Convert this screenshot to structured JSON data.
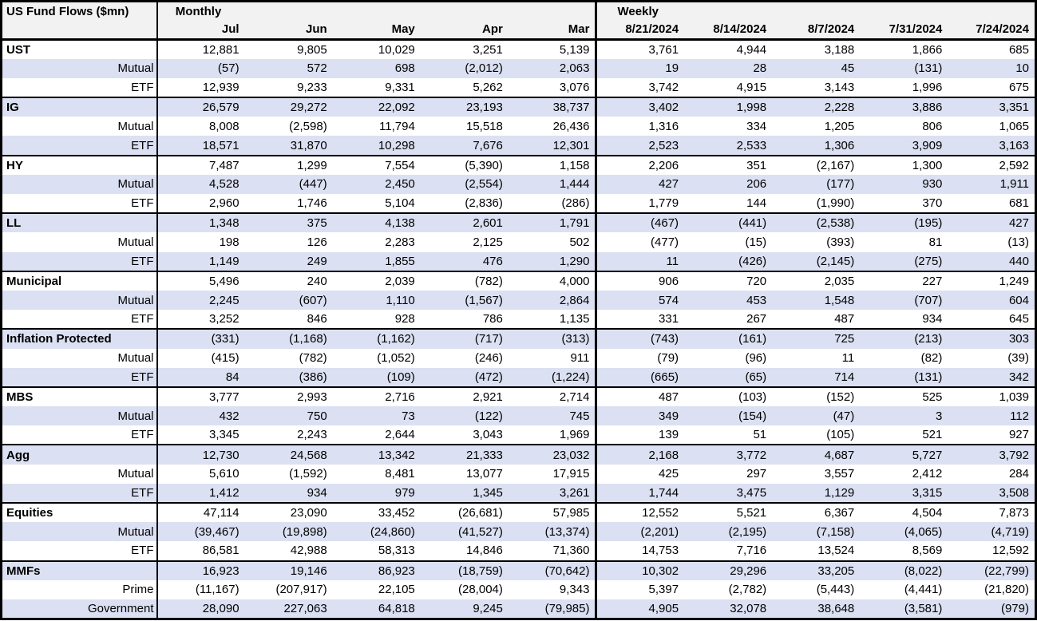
{
  "colors": {
    "stripe": "#dbe0f2",
    "header_bg": "#f2f2f2",
    "border": "#000000"
  },
  "table": {
    "title": "US Fund Flows ($mn)",
    "monthly_label": "Monthly",
    "weekly_label": "Weekly",
    "monthly_columns": [
      "Jul",
      "Jun",
      "May",
      "Apr",
      "Mar"
    ],
    "weekly_columns": [
      "8/21/2024",
      "8/14/2024",
      "8/7/2024",
      "7/31/2024",
      "7/24/2024"
    ],
    "groups": [
      {
        "rows": [
          {
            "label": "UST",
            "monthly": [
              "12,881",
              "9,805",
              "10,029",
              "3,251",
              "5,139"
            ],
            "weekly": [
              "3,761",
              "4,944",
              "3,188",
              "1,866",
              "685"
            ]
          },
          {
            "label": "Mutual",
            "monthly": [
              "(57)",
              "572",
              "698",
              "(2,012)",
              "2,063"
            ],
            "weekly": [
              "19",
              "28",
              "45",
              "(131)",
              "10"
            ]
          },
          {
            "label": "ETF",
            "monthly": [
              "12,939",
              "9,233",
              "9,331",
              "5,262",
              "3,076"
            ],
            "weekly": [
              "3,742",
              "4,915",
              "3,143",
              "1,996",
              "675"
            ]
          }
        ]
      },
      {
        "rows": [
          {
            "label": "IG",
            "monthly": [
              "26,579",
              "29,272",
              "22,092",
              "23,193",
              "38,737"
            ],
            "weekly": [
              "3,402",
              "1,998",
              "2,228",
              "3,886",
              "3,351"
            ]
          },
          {
            "label": "Mutual",
            "monthly": [
              "8,008",
              "(2,598)",
              "11,794",
              "15,518",
              "26,436"
            ],
            "weekly": [
              "1,316",
              "334",
              "1,205",
              "806",
              "1,065"
            ]
          },
          {
            "label": "ETF",
            "monthly": [
              "18,571",
              "31,870",
              "10,298",
              "7,676",
              "12,301"
            ],
            "weekly": [
              "2,523",
              "2,533",
              "1,306",
              "3,909",
              "3,163"
            ]
          }
        ]
      },
      {
        "rows": [
          {
            "label": "HY",
            "monthly": [
              "7,487",
              "1,299",
              "7,554",
              "(5,390)",
              "1,158"
            ],
            "weekly": [
              "2,206",
              "351",
              "(2,167)",
              "1,300",
              "2,592"
            ]
          },
          {
            "label": "Mutual",
            "monthly": [
              "4,528",
              "(447)",
              "2,450",
              "(2,554)",
              "1,444"
            ],
            "weekly": [
              "427",
              "206",
              "(177)",
              "930",
              "1,911"
            ]
          },
          {
            "label": "ETF",
            "monthly": [
              "2,960",
              "1,746",
              "5,104",
              "(2,836)",
              "(286)"
            ],
            "weekly": [
              "1,779",
              "144",
              "(1,990)",
              "370",
              "681"
            ]
          }
        ]
      },
      {
        "rows": [
          {
            "label": "LL",
            "monthly": [
              "1,348",
              "375",
              "4,138",
              "2,601",
              "1,791"
            ],
            "weekly": [
              "(467)",
              "(441)",
              "(2,538)",
              "(195)",
              "427"
            ]
          },
          {
            "label": "Mutual",
            "monthly": [
              "198",
              "126",
              "2,283",
              "2,125",
              "502"
            ],
            "weekly": [
              "(477)",
              "(15)",
              "(393)",
              "81",
              "(13)"
            ]
          },
          {
            "label": "ETF",
            "monthly": [
              "1,149",
              "249",
              "1,855",
              "476",
              "1,290"
            ],
            "weekly": [
              "11",
              "(426)",
              "(2,145)",
              "(275)",
              "440"
            ]
          }
        ]
      },
      {
        "rows": [
          {
            "label": "Municipal",
            "monthly": [
              "5,496",
              "240",
              "2,039",
              "(782)",
              "4,000"
            ],
            "weekly": [
              "906",
              "720",
              "2,035",
              "227",
              "1,249"
            ]
          },
          {
            "label": "Mutual",
            "monthly": [
              "2,245",
              "(607)",
              "1,110",
              "(1,567)",
              "2,864"
            ],
            "weekly": [
              "574",
              "453",
              "1,548",
              "(707)",
              "604"
            ]
          },
          {
            "label": "ETF",
            "monthly": [
              "3,252",
              "846",
              "928",
              "786",
              "1,135"
            ],
            "weekly": [
              "331",
              "267",
              "487",
              "934",
              "645"
            ]
          }
        ]
      },
      {
        "rows": [
          {
            "label": "Inflation Protected",
            "monthly": [
              "(331)",
              "(1,168)",
              "(1,162)",
              "(717)",
              "(313)"
            ],
            "weekly": [
              "(743)",
              "(161)",
              "725",
              "(213)",
              "303"
            ]
          },
          {
            "label": "Mutual",
            "monthly": [
              "(415)",
              "(782)",
              "(1,052)",
              "(246)",
              "911"
            ],
            "weekly": [
              "(79)",
              "(96)",
              "11",
              "(82)",
              "(39)"
            ]
          },
          {
            "label": "ETF",
            "monthly": [
              "84",
              "(386)",
              "(109)",
              "(472)",
              "(1,224)"
            ],
            "weekly": [
              "(665)",
              "(65)",
              "714",
              "(131)",
              "342"
            ]
          }
        ]
      },
      {
        "rows": [
          {
            "label": "MBS",
            "monthly": [
              "3,777",
              "2,993",
              "2,716",
              "2,921",
              "2,714"
            ],
            "weekly": [
              "487",
              "(103)",
              "(152)",
              "525",
              "1,039"
            ]
          },
          {
            "label": "Mutual",
            "monthly": [
              "432",
              "750",
              "73",
              "(122)",
              "745"
            ],
            "weekly": [
              "349",
              "(154)",
              "(47)",
              "3",
              "112"
            ]
          },
          {
            "label": "ETF",
            "monthly": [
              "3,345",
              "2,243",
              "2,644",
              "3,043",
              "1,969"
            ],
            "weekly": [
              "139",
              "51",
              "(105)",
              "521",
              "927"
            ]
          }
        ]
      },
      {
        "rows": [
          {
            "label": "Agg",
            "monthly": [
              "12,730",
              "24,568",
              "13,342",
              "21,333",
              "23,032"
            ],
            "weekly": [
              "2,168",
              "3,772",
              "4,687",
              "5,727",
              "3,792"
            ]
          },
          {
            "label": "Mutual",
            "monthly": [
              "5,610",
              "(1,592)",
              "8,481",
              "13,077",
              "17,915"
            ],
            "weekly": [
              "425",
              "297",
              "3,557",
              "2,412",
              "284"
            ]
          },
          {
            "label": "ETF",
            "monthly": [
              "1,412",
              "934",
              "979",
              "1,345",
              "3,261"
            ],
            "weekly": [
              "1,744",
              "3,475",
              "1,129",
              "3,315",
              "3,508"
            ]
          }
        ]
      },
      {
        "rows": [
          {
            "label": "Equities",
            "monthly": [
              "47,114",
              "23,090",
              "33,452",
              "(26,681)",
              "57,985"
            ],
            "weekly": [
              "12,552",
              "5,521",
              "6,367",
              "4,504",
              "7,873"
            ]
          },
          {
            "label": "Mutual",
            "monthly": [
              "(39,467)",
              "(19,898)",
              "(24,860)",
              "(41,527)",
              "(13,374)"
            ],
            "weekly": [
              "(2,201)",
              "(2,195)",
              "(7,158)",
              "(4,065)",
              "(4,719)"
            ]
          },
          {
            "label": "ETF",
            "monthly": [
              "86,581",
              "42,988",
              "58,313",
              "14,846",
              "71,360"
            ],
            "weekly": [
              "14,753",
              "7,716",
              "13,524",
              "8,569",
              "12,592"
            ]
          }
        ]
      },
      {
        "rows": [
          {
            "label": "MMFs",
            "monthly": [
              "16,923",
              "19,146",
              "86,923",
              "(18,759)",
              "(70,642)"
            ],
            "weekly": [
              "10,302",
              "29,296",
              "33,205",
              "(8,022)",
              "(22,799)"
            ]
          },
          {
            "label": "Prime",
            "monthly": [
              "(11,167)",
              "(207,917)",
              "22,105",
              "(28,004)",
              "9,343"
            ],
            "weekly": [
              "5,397",
              "(2,782)",
              "(5,443)",
              "(4,441)",
              "(21,820)"
            ]
          },
          {
            "label": "Government",
            "monthly": [
              "28,090",
              "227,063",
              "64,818",
              "9,245",
              "(79,985)"
            ],
            "weekly": [
              "4,905",
              "32,078",
              "38,648",
              "(3,581)",
              "(979)"
            ]
          }
        ]
      }
    ]
  }
}
